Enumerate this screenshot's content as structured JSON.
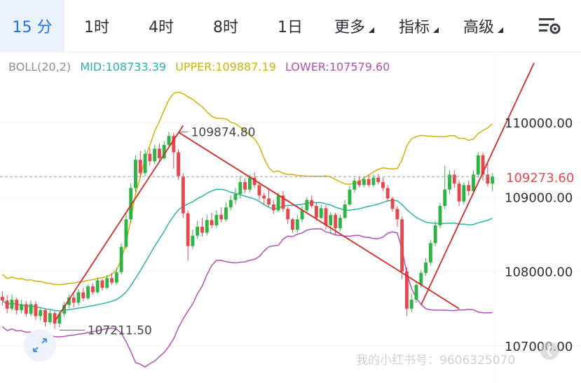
{
  "toolbar": {
    "tabs": [
      {
        "label": "15 分",
        "active": true
      },
      {
        "label": "1时"
      },
      {
        "label": "4时"
      },
      {
        "label": "8时"
      },
      {
        "label": "1日"
      },
      {
        "label": "更多",
        "caret": true
      },
      {
        "label": "指标",
        "caret": true
      },
      {
        "label": "高级",
        "caret": true
      }
    ],
    "settings_icon": "chart-settings-icon"
  },
  "indicator": {
    "name": "BOLL(20,2)",
    "mid": "MID:108733.39",
    "upper": "UPPER:109887.19",
    "lower": "LOWER:107579.60",
    "colors": {
      "name": "#8a8f99",
      "mid": "#2bb3a6",
      "upper": "#d4b106",
      "lower": "#b44fb5"
    }
  },
  "watermark": "我的小红书号：9606325070",
  "chart_data": {
    "type": "candlestick",
    "y_axis": {
      "side": "right",
      "ticks": [
        110000.0,
        109000.0,
        108000.0,
        107000.0
      ],
      "tick_labels": [
        "110000.00",
        "109000.00",
        "108000.00",
        "107000.00"
      ]
    },
    "current_price": {
      "value": 109273.6,
      "label": "109273.60",
      "color": "#e5484d"
    },
    "annotations": [
      {
        "type": "high",
        "value": 109874.8,
        "label": "109874.80"
      },
      {
        "type": "low",
        "value": 107211.5,
        "label": "107211.50"
      }
    ],
    "colors": {
      "up": "#2fb344",
      "down": "#e5484d",
      "trendline": "#d12a2a",
      "grid": "#f1f2f4"
    },
    "candles": [
      [
        107660,
        107610,
        107730,
        107540
      ],
      [
        107610,
        107500,
        107680,
        107440
      ],
      [
        107500,
        107620,
        107690,
        107470
      ],
      [
        107620,
        107480,
        107650,
        107420
      ],
      [
        107480,
        107560,
        107620,
        107440
      ],
      [
        107560,
        107430,
        107600,
        107390
      ],
      [
        107430,
        107560,
        107610,
        107400
      ],
      [
        107560,
        107400,
        107600,
        107350
      ],
      [
        107400,
        107480,
        107520,
        107340
      ],
      [
        107480,
        107320,
        107510,
        107260
      ],
      [
        107320,
        107440,
        107480,
        107290
      ],
      [
        107440,
        107300,
        107470,
        107230
      ],
      [
        107300,
        107430,
        107460,
        107250
      ],
      [
        107430,
        107550,
        107590,
        107390
      ],
      [
        107550,
        107650,
        107690,
        107510
      ],
      [
        107650,
        107580,
        107700,
        107520
      ],
      [
        107580,
        107720,
        107760,
        107540
      ],
      [
        107720,
        107640,
        107780,
        107600
      ],
      [
        107640,
        107800,
        107830,
        107620
      ],
      [
        107800,
        107720,
        107840,
        107690
      ],
      [
        107720,
        107880,
        107920,
        107700
      ],
      [
        107880,
        107780,
        107900,
        107740
      ],
      [
        107780,
        107910,
        107950,
        107760
      ],
      [
        107910,
        107850,
        107980,
        107820
      ],
      [
        107850,
        107990,
        108050,
        107820
      ],
      [
        107990,
        108330,
        108380,
        107960
      ],
      [
        108330,
        108700,
        108780,
        108300
      ],
      [
        108700,
        109120,
        109180,
        108650
      ],
      [
        109120,
        109500,
        109560,
        109060
      ],
      [
        109500,
        109320,
        109620,
        109260
      ],
      [
        109320,
        109580,
        109640,
        109280
      ],
      [
        109580,
        109480,
        109660,
        109420
      ],
      [
        109480,
        109650,
        109700,
        109440
      ],
      [
        109650,
        109520,
        109720,
        109480
      ],
      [
        109520,
        109700,
        109750,
        109500
      ],
      [
        109700,
        109820,
        109875,
        109660
      ],
      [
        109820,
        109600,
        109860,
        109380
      ],
      [
        109600,
        109280,
        109640,
        109230
      ],
      [
        109280,
        108780,
        109320,
        108720
      ],
      [
        108780,
        108340,
        108820,
        108150
      ],
      [
        108340,
        108480,
        108560,
        108300
      ],
      [
        108480,
        108600,
        108680,
        108440
      ],
      [
        108600,
        108520,
        108720,
        108470
      ],
      [
        108520,
        108690,
        108760,
        108480
      ],
      [
        108690,
        108620,
        108790,
        108580
      ],
      [
        108620,
        108760,
        108820,
        108590
      ],
      [
        108760,
        108700,
        108860,
        108660
      ],
      [
        108700,
        108860,
        108930,
        108670
      ],
      [
        108860,
        108960,
        109020,
        108820
      ],
      [
        108960,
        109040,
        109120,
        108900
      ],
      [
        109040,
        109200,
        109280,
        108980
      ],
      [
        109200,
        109100,
        109250,
        109050
      ],
      [
        109100,
        109260,
        109300,
        109060
      ],
      [
        109260,
        109160,
        109330,
        109120
      ],
      [
        109160,
        109020,
        109210,
        108960
      ],
      [
        109020,
        108980,
        109060,
        108900
      ],
      [
        108980,
        108900,
        109110,
        108860
      ],
      [
        108900,
        108820,
        108960,
        108770
      ],
      [
        108820,
        109020,
        109060,
        108800
      ],
      [
        109020,
        108840,
        109080,
        108800
      ],
      [
        108840,
        108700,
        108870,
        108640
      ],
      [
        108700,
        108560,
        108720,
        108520
      ],
      [
        108560,
        108700,
        108760,
        108520
      ],
      [
        108700,
        108820,
        108880,
        108660
      ],
      [
        108820,
        108960,
        109000,
        108780
      ],
      [
        108960,
        108880,
        109020,
        108850
      ],
      [
        108880,
        108720,
        108920,
        108680
      ],
      [
        108720,
        108850,
        108900,
        108700
      ],
      [
        108850,
        108620,
        108890,
        108560
      ],
      [
        108620,
        108760,
        108800,
        108500
      ],
      [
        108760,
        108580,
        108790,
        108480
      ],
      [
        108580,
        108720,
        108760,
        108540
      ],
      [
        108720,
        108900,
        108960,
        108700
      ],
      [
        108900,
        109100,
        109150,
        108880
      ],
      [
        109100,
        109220,
        109260,
        109060
      ],
      [
        109220,
        109160,
        109280,
        109130
      ],
      [
        109160,
        109240,
        109270,
        109130
      ],
      [
        109240,
        109160,
        109300,
        109130
      ],
      [
        109160,
        109260,
        109300,
        109130
      ],
      [
        109260,
        109200,
        109310,
        109170
      ],
      [
        109200,
        109120,
        109260,
        109080
      ],
      [
        109120,
        108980,
        109160,
        108940
      ],
      [
        108980,
        108840,
        109000,
        108800
      ],
      [
        108840,
        108700,
        108880,
        108600
      ],
      [
        108700,
        108000,
        108740,
        107900
      ],
      [
        108000,
        107500,
        108060,
        107400
      ],
      [
        107500,
        107620,
        107700,
        107450
      ],
      [
        107620,
        107820,
        107860,
        107580
      ],
      [
        107820,
        107980,
        108020,
        107780
      ],
      [
        107980,
        108120,
        108180,
        107940
      ],
      [
        108120,
        108380,
        108420,
        108080
      ],
      [
        108380,
        108620,
        108680,
        108340
      ],
      [
        108620,
        108880,
        108920,
        108580
      ],
      [
        108880,
        109100,
        109420,
        108840
      ],
      [
        109100,
        109300,
        109360,
        109040
      ],
      [
        109300,
        109180,
        109360,
        109120
      ],
      [
        109180,
        108940,
        109220,
        108880
      ],
      [
        108940,
        109160,
        109200,
        108900
      ],
      [
        109160,
        109080,
        109220,
        109020
      ],
      [
        109080,
        109300,
        109360,
        109040
      ],
      [
        109300,
        109560,
        109600,
        109260
      ],
      [
        109560,
        109300,
        109600,
        109220
      ],
      [
        109300,
        109180,
        109460,
        109140
      ],
      [
        109180,
        109273.6,
        109320,
        109080
      ]
    ]
  }
}
